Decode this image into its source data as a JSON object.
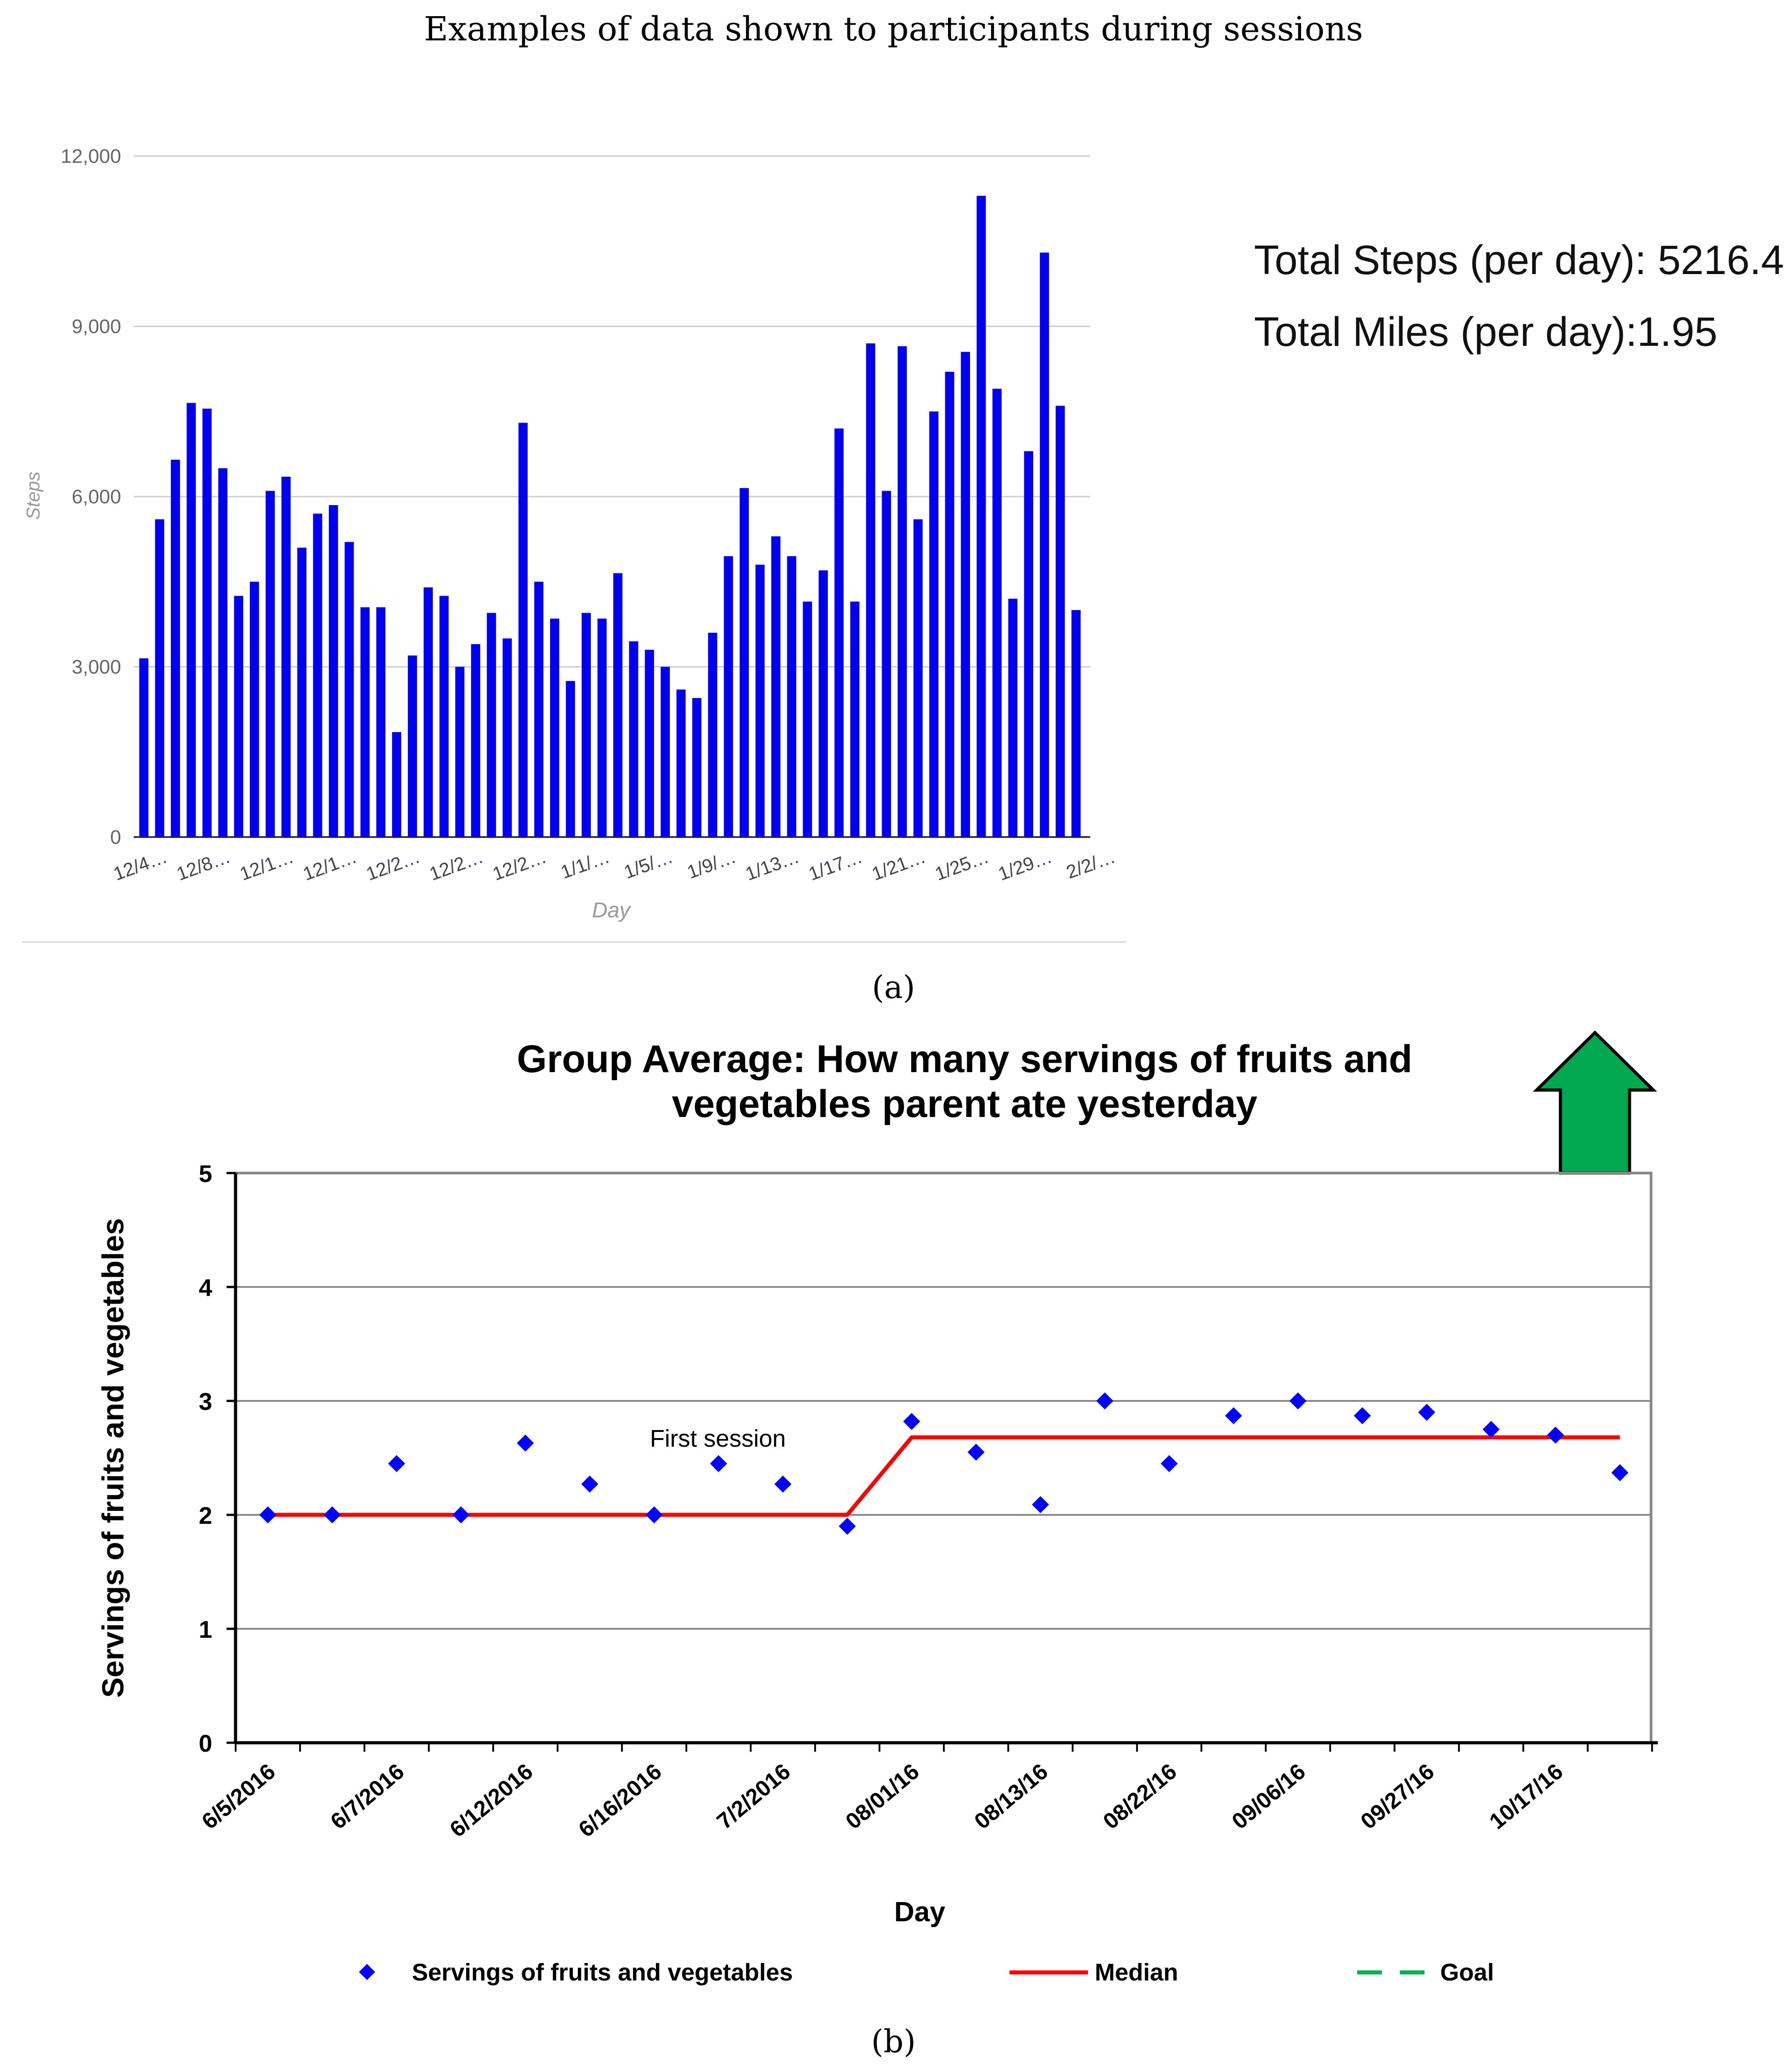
{
  "figure": {
    "title": "Examples of data shown to participants during sessions",
    "label_a": "(a)",
    "label_b": "(b)"
  },
  "summary": {
    "steps_line": "Total Steps (per day): 5216.4",
    "miles_line": "Total Miles (per day):1.95"
  },
  "chart_data": [
    {
      "id": "steps-chart",
      "type": "bar",
      "title": "",
      "xlabel": "Day",
      "ylabel": "Steps",
      "ylim": [
        0,
        12000
      ],
      "yticks": [
        0,
        3000,
        6000,
        9000,
        12000
      ],
      "ytick_labels": [
        "0",
        "3,000",
        "6,000",
        "9,000",
        "12,000"
      ],
      "grid": true,
      "color": "#0000ee",
      "xtick_labels": [
        "12/4…",
        "12/8…",
        "12/1…",
        "12/1…",
        "12/2…",
        "12/2…",
        "12/2…",
        "1/1/…",
        "1/5/…",
        "1/9/…",
        "1/13…",
        "1/17…",
        "1/21…",
        "1/25…",
        "1/29…",
        "2/2/…"
      ],
      "values": [
        3150,
        5600,
        6650,
        7650,
        7550,
        6500,
        4250,
        4500,
        6100,
        6350,
        5100,
        5700,
        5850,
        5200,
        4050,
        4050,
        1850,
        3200,
        4400,
        4250,
        3000,
        3400,
        3950,
        3500,
        7300,
        4500,
        3850,
        2750,
        3950,
        3850,
        4650,
        3450,
        3300,
        3000,
        2600,
        2450,
        3600,
        4950,
        6150,
        4800,
        5300,
        4950,
        4150,
        4700,
        7200,
        4150,
        8700,
        6100,
        8650,
        5600,
        7500,
        8200,
        8550,
        11300,
        7900,
        4200,
        6800,
        10300,
        7600,
        4000
      ]
    },
    {
      "id": "servings-chart",
      "type": "scatter",
      "title": "Group Average: How many servings of fruits and vegetables parent ate yesterday",
      "title_lines": [
        "Group Average: How many servings of fruits and",
        "vegetables parent ate yesterday"
      ],
      "xlabel": "Day",
      "ylabel": "Servings of fruits and vegetables",
      "ylim": [
        0,
        5
      ],
      "yticks": [
        0,
        1,
        2,
        3,
        4,
        5
      ],
      "grid": true,
      "xtick_labels": [
        "6/5/2016",
        "6/7/2016",
        "6/12/2016",
        "6/16/2016",
        "7/2/2016",
        "08/01/16",
        "08/13/16",
        "08/22/16",
        "09/06/16",
        "09/27/16",
        "10/17/16"
      ],
      "series": [
        {
          "name": "Servings of fruits and vegetables",
          "color": "#0000ff",
          "marker": "diamond",
          "values": [
            2.0,
            2.0,
            2.45,
            2.0,
            2.63,
            2.27,
            2.0,
            2.45,
            2.27,
            1.9,
            2.82,
            2.55,
            2.09,
            3.0,
            2.45,
            2.87,
            3.0,
            2.87,
            2.9,
            2.75,
            2.7,
            2.37
          ]
        },
        {
          "name": "Median",
          "color": "#ff0000",
          "line": "solid",
          "values": [
            2.0,
            2.0,
            2.0,
            2.0,
            2.0,
            2.0,
            2.0,
            2.0,
            2.0,
            2.0,
            2.68,
            2.68,
            2.68,
            2.68,
            2.68,
            2.68,
            2.68,
            2.68,
            2.68,
            2.68,
            2.68,
            2.68
          ]
        },
        {
          "name": "Goal",
          "color": "#00b050",
          "line": "dashed",
          "values": []
        }
      ],
      "annotation": "First session",
      "indicator": "up-arrow",
      "indicator_color": "#00aa44",
      "legend_position": "bottom"
    }
  ]
}
